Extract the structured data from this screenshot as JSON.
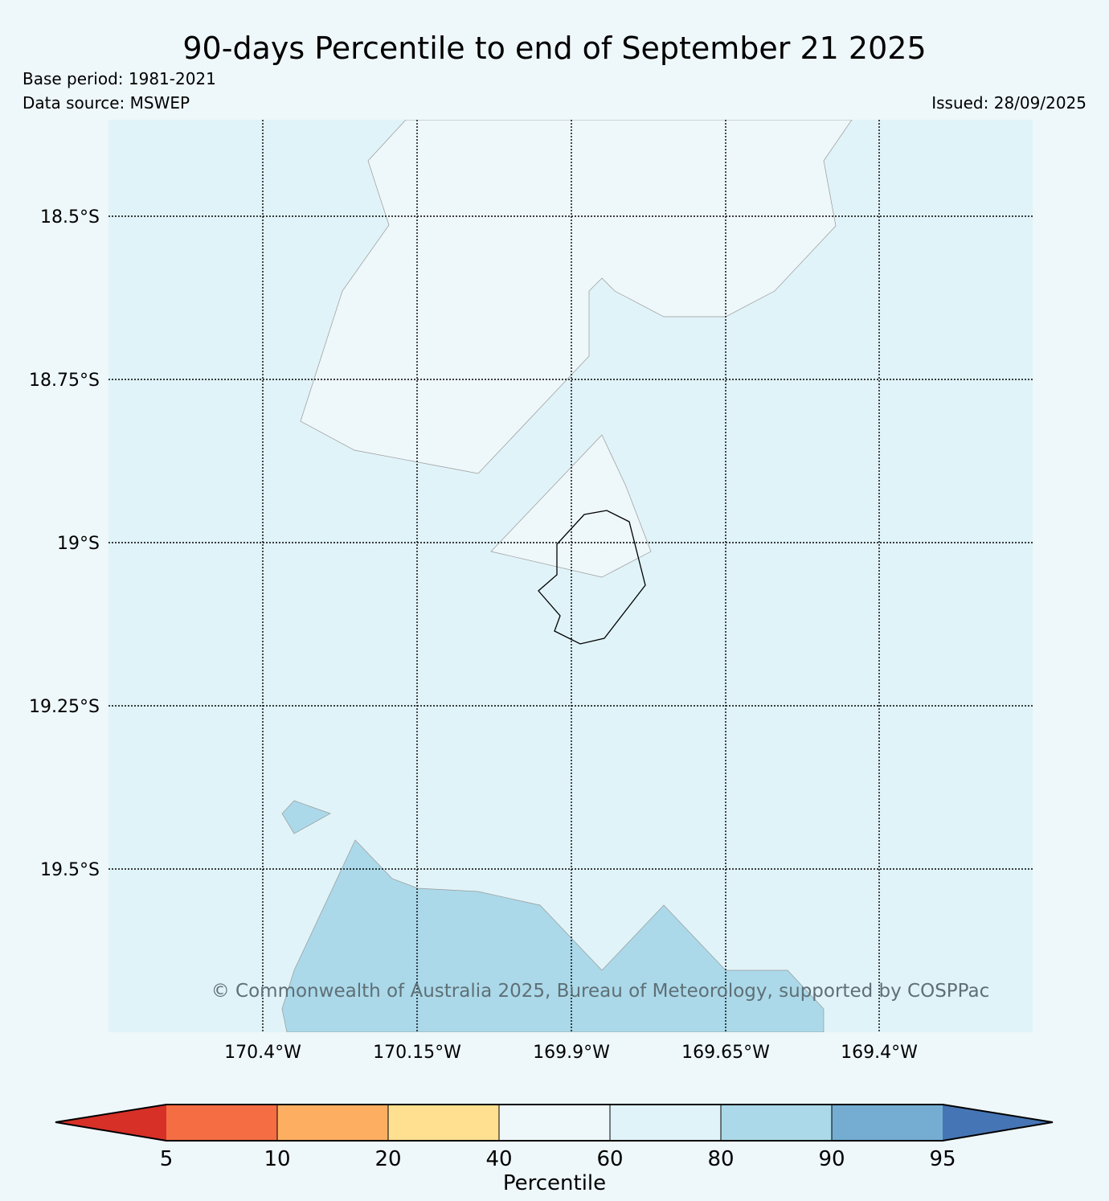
{
  "title": "90-days Percentile to end of September 21 2025",
  "base_period": "Base period: 1981-2021",
  "data_source": "Data source: MSWEP",
  "issued": "Issued: 28/09/2025",
  "copyright": "© Commonwealth of Australia 2025, Bureau of Meteorology, supported by COSPPac",
  "axes": {
    "lat_labels": [
      "18.5°S",
      "18.75°S",
      "19°S",
      "19.25°S",
      "19.5°S"
    ],
    "lon_labels": [
      "170.4°W",
      "170.15°W",
      "169.9°W",
      "169.65°W",
      "169.4°W"
    ]
  },
  "colorbar": {
    "label": "Percentile",
    "ticks": [
      "5",
      "10",
      "20",
      "40",
      "60",
      "80",
      "90",
      "95"
    ],
    "colors": [
      "#d73027",
      "#f46d43",
      "#fdae61",
      "#fee090",
      "#eef7fa",
      "#e0f3f8",
      "#abd9e9",
      "#74add1",
      "#4575b4"
    ]
  },
  "map_colors": {
    "background": "#e0f3f8",
    "band_40_60": "#eef7fa",
    "band_80_90": "#abd9e9"
  }
}
